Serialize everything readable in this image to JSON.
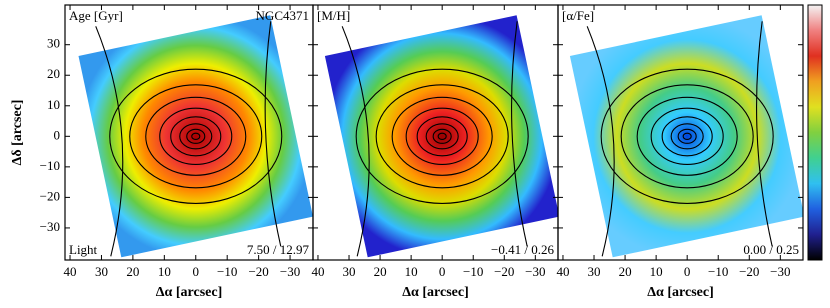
{
  "chart_data": [
    {
      "type": "map",
      "title": "Age [Gyr]",
      "object": "NGC4371",
      "note": "Light",
      "range_label": "7.50 / 12.97",
      "xlabel": "Δα [arcsec]",
      "ylabel": "Δδ [arcsec]",
      "xlim": [
        41.6,
        -37.3
      ],
      "ylim": [
        -40.5,
        43
      ],
      "xticks": [
        40,
        30,
        20,
        10,
        0,
        {
          "value": -10,
          "label": "−10"
        },
        {
          "value": -20,
          "label": "−20"
        },
        {
          "value": -30,
          "label": "−30"
        }
      ],
      "yticks": [
        {
          "value": -30,
          "label": "−30"
        },
        {
          "value": -20,
          "label": "−20"
        },
        {
          "value": -10,
          "label": "−10"
        },
        0,
        10,
        20,
        30
      ]
    },
    {
      "type": "map",
      "title": "[M/H]",
      "range_label": "−0.41 / 0.26",
      "xlabel": "Δα [arcsec]",
      "xlim": [
        41.6,
        -37.3
      ],
      "ylim": [
        -40.5,
        43
      ],
      "xticks": [
        40,
        30,
        20,
        10,
        0,
        {
          "value": -10,
          "label": "−10"
        },
        {
          "value": -20,
          "label": "−20"
        },
        {
          "value": -30,
          "label": "−30"
        }
      ]
    },
    {
      "type": "map",
      "title": "[α/Fe]",
      "range_label": "0.00 / 0.25",
      "xlabel": "Δα [arcsec]",
      "xlim": [
        41.6,
        -37.3
      ],
      "ylim": [
        -40.5,
        43
      ],
      "xticks": [
        40,
        30,
        20,
        10,
        0,
        {
          "value": -10,
          "label": "−10"
        },
        {
          "value": -20,
          "label": "−20"
        },
        {
          "value": -30,
          "label": "−30"
        }
      ]
    }
  ],
  "colorbar_colors": [
    "#000000",
    "#20208f",
    "#2060e0",
    "#30c0f0",
    "#40d090",
    "#80d040",
    "#e0e020",
    "#f0a020",
    "#e03020",
    "#f08080",
    "#f4f4f4"
  ]
}
